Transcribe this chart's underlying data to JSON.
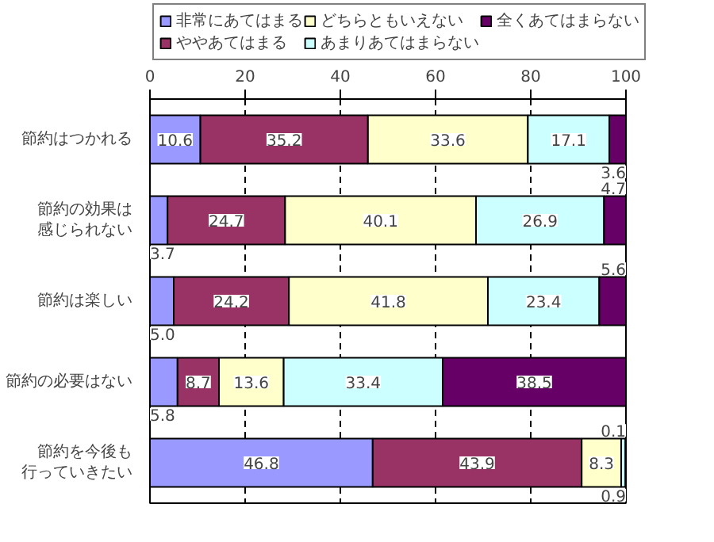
{
  "chart_data": {
    "type": "bar",
    "orientation": "horizontal",
    "stacked": true,
    "categories": [
      "節約はつかれる",
      "節約の効果は感じられない",
      "節約は楽しい",
      "節約の必要はない",
      "節約を今後も行っていきたい"
    ],
    "series": [
      {
        "name": "非常にあてはまる",
        "color": "#9999ff",
        "values": [
          10.6,
          3.7,
          5.0,
          5.8,
          46.8
        ],
        "value_labels": [
          "10.6",
          "3.7",
          "5.0",
          "5.8",
          "46.8"
        ]
      },
      {
        "name": "ややあてはまる",
        "color": "#993366",
        "values": [
          35.2,
          24.7,
          24.2,
          8.7,
          43.9
        ],
        "value_labels": [
          "35.2",
          "24.7",
          "24.2",
          "8.7",
          "43.9"
        ]
      },
      {
        "name": "どちらともいえない",
        "color": "#ffffcc",
        "values": [
          33.6,
          40.1,
          41.8,
          13.6,
          8.3
        ],
        "value_labels": [
          "33.6",
          "40.1",
          "41.8",
          "13.6",
          "8.3"
        ]
      },
      {
        "name": "あまりあてはまらない",
        "color": "#ccffff",
        "values": [
          17.1,
          26.9,
          23.4,
          33.4,
          0.9
        ],
        "value_labels": [
          "17.1",
          "26.9",
          "23.4",
          "33.4",
          "0.9"
        ]
      },
      {
        "name": "全くあてはまらない",
        "color": "#660066",
        "values": [
          3.6,
          4.7,
          5.6,
          38.5,
          0.1
        ],
        "value_labels": [
          "3.6",
          "4.7",
          "5.6",
          "38.5",
          "0.1"
        ]
      }
    ],
    "xlim": [
      0,
      100
    ],
    "xticks": [
      0,
      20,
      40,
      60,
      80,
      100
    ],
    "grid": "x",
    "legend": "top"
  }
}
